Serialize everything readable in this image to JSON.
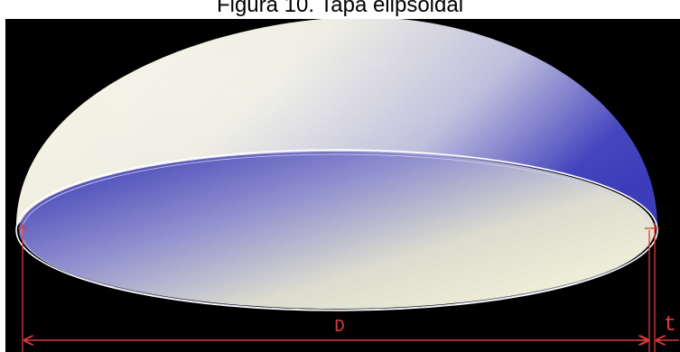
{
  "caption": "Figura 10. Tapa elipsoidal",
  "labels": {
    "diameter": "D",
    "thickness": "t"
  },
  "colors": {
    "background": "#000000",
    "shell_light": "#f4f3de",
    "shell_dark": "#3b3bb8",
    "dimension": "#e03b3b"
  }
}
